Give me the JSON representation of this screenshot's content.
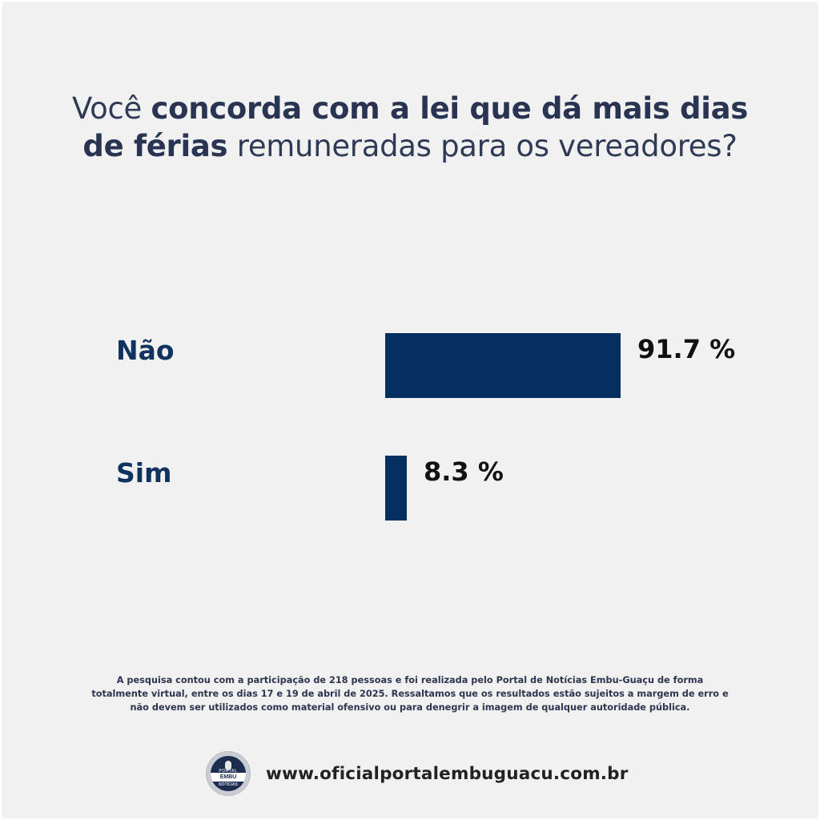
{
  "title": {
    "part1": "Você ",
    "bold1": "concorda com a lei que dá mais dias",
    "bold2": "de férias",
    "part2": " remuneradas para os vereadores?"
  },
  "chart_data": {
    "type": "bar",
    "orientation": "horizontal",
    "categories": [
      "Não",
      "Sim"
    ],
    "values": [
      91.7,
      8.3
    ],
    "value_labels": [
      "91.7 %",
      "8.3 %"
    ],
    "title": "Você concorda com a lei que dá mais dias de férias remuneradas para os vereadores?",
    "xlabel": "",
    "ylabel": "",
    "xlim": [
      0,
      100
    ],
    "grid": false,
    "bar_color": "#03305f",
    "label_color": "#10325f"
  },
  "footnote": "A pesquisa contou com a participação de 218 pessoas e foi realizada pelo Portal de Notícias Embu-Guaçu de forma totalmente virtual, entre os dias 17 e 19 de abril de 2025. Ressaltamos que os resultados estão sujeitos a margem de erro e não devem ser utilizados como material ofensivo ou para denegrir a imagem de qualquer autoridade pública.",
  "logo": {
    "top": "PORTAL",
    "middle": "EMBU GUAÇU",
    "bottom": "NOTÍCIAS"
  },
  "website": "www.oficialportalembuguacu.com.br"
}
